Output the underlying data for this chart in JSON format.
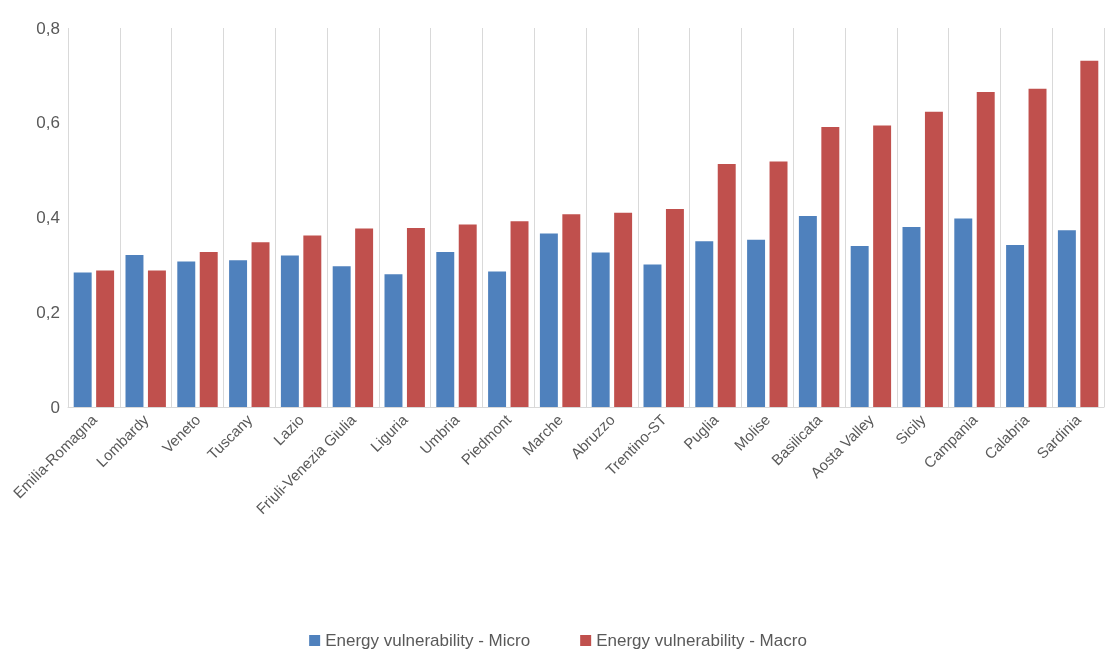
{
  "chart_data": {
    "type": "bar",
    "categories": [
      "Emilia-Romagna",
      "Lombardy",
      "Veneto",
      "Tuscany",
      "Lazio",
      "Friuli-Venezia Giulia",
      "Liguria",
      "Umbria",
      "Piedmont",
      "Marche",
      "Abruzzo",
      "Trentino-ST",
      "Puglia",
      "Molise",
      "Basilicata",
      "Aosta Valley",
      "Sicily",
      "Campania",
      "Calabria",
      "Sardinia"
    ],
    "series": [
      {
        "name": "Energy vulnerability - Micro",
        "color": "#4f81bd",
        "values": [
          0.284,
          0.321,
          0.307,
          0.31,
          0.32,
          0.297,
          0.28,
          0.327,
          0.286,
          0.366,
          0.326,
          0.301,
          0.35,
          0.353,
          0.403,
          0.34,
          0.38,
          0.398,
          0.342,
          0.373
        ]
      },
      {
        "name": "Energy vulnerability - Macro",
        "color": "#c0504d",
        "values": [
          0.288,
          0.288,
          0.327,
          0.348,
          0.362,
          0.377,
          0.378,
          0.385,
          0.392,
          0.407,
          0.41,
          0.418,
          0.513,
          0.518,
          0.591,
          0.594,
          0.623,
          0.665,
          0.672,
          0.731
        ]
      }
    ],
    "ylim": [
      0,
      0.8
    ],
    "yticks": [
      0,
      {
        "value": 0.2,
        "label": "0,2"
      },
      {
        "value": 0.4,
        "label": "0,4"
      },
      {
        "value": 0.6,
        "label": "0,6"
      },
      {
        "value": 0.8,
        "label": "0,8"
      }
    ],
    "grid": "x",
    "legend": "bottom"
  }
}
